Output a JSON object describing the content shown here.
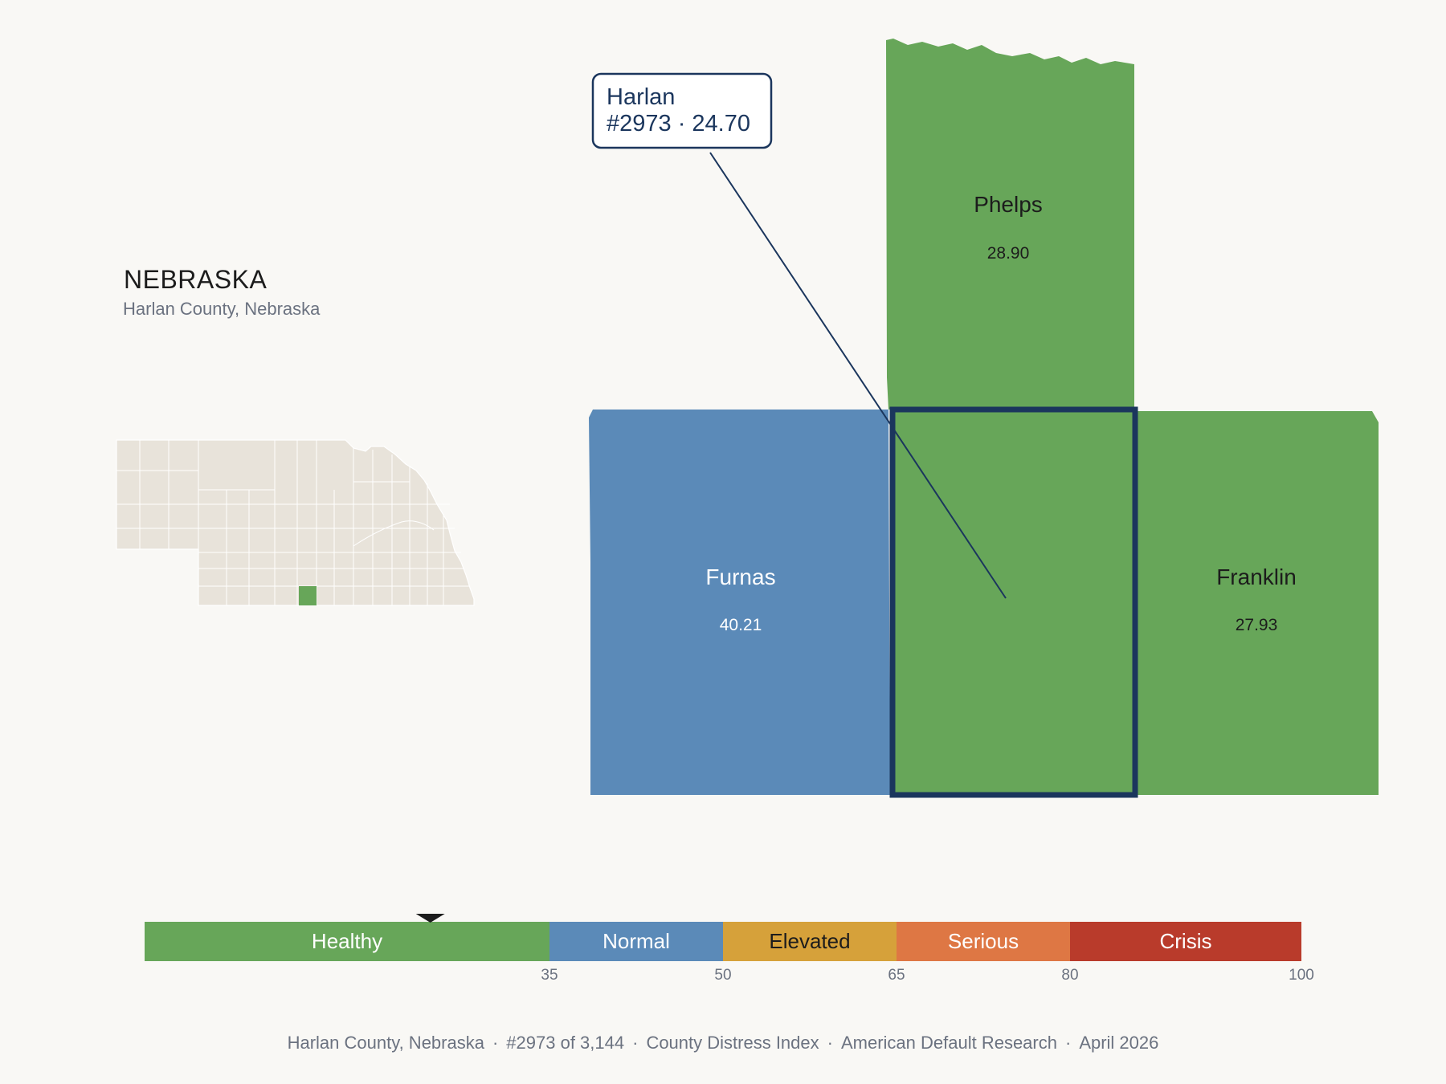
{
  "state": {
    "title": "NEBRASKA",
    "subtitle": "Harlan County, Nebraska"
  },
  "counties": {
    "phelps": {
      "name": "Phelps",
      "score": "28.90",
      "category": "Healthy"
    },
    "furnas": {
      "name": "Furnas",
      "score": "40.21",
      "category": "Normal"
    },
    "harlan": {
      "name": "Harlan",
      "score": "24.70",
      "category": "Healthy"
    },
    "franklin": {
      "name": "Franklin",
      "score": "27.93",
      "category": "Healthy"
    }
  },
  "callout": {
    "line1": "Harlan",
    "line2": "#2973 · 24.70"
  },
  "scale": {
    "segments": [
      {
        "label": "Healthy",
        "from": 0,
        "to": 35,
        "color": "#67a659"
      },
      {
        "label": "Normal",
        "from": 35,
        "to": 50,
        "color": "#5b8ab8"
      },
      {
        "label": "Elevated",
        "from": 50,
        "to": 65,
        "color": "#d6a13a"
      },
      {
        "label": "Serious",
        "from": 65,
        "to": 80,
        "color": "#de7744"
      },
      {
        "label": "Crisis",
        "from": 80,
        "to": 100,
        "color": "#b93b2b"
      }
    ],
    "ticks": [
      "35",
      "50",
      "65",
      "80",
      "100"
    ],
    "marker_value": 24.7
  },
  "footer": {
    "county": "Harlan County, Nebraska",
    "rank": "#2973 of 3,144",
    "index": "County Distress Index",
    "source": "American Default Research",
    "date": "April 2026"
  },
  "colors": {
    "background": "#f9f8f5",
    "locator_fill": "#e8e3da",
    "locator_border": "#ffffff",
    "highlight_stroke": "#1b365d",
    "healthy": "#67a659",
    "normal": "#5b8ab8"
  }
}
